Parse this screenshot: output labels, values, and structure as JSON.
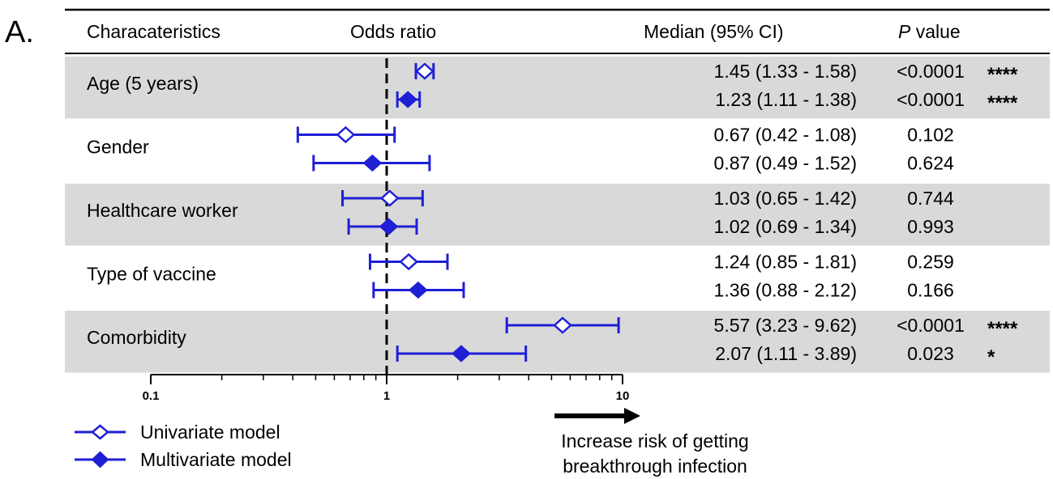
{
  "panel_label": "A.",
  "header": {
    "characteristics": "Characateristics",
    "odds_ratio": "Odds ratio",
    "median_ci": "Median (95% CI)",
    "p_italic": "P",
    "p_rest": " value"
  },
  "chart_data": {
    "type": "forest",
    "x_scale": "log",
    "xlim": [
      0.1,
      10
    ],
    "x_ticks": [
      "0.1",
      "1",
      "10"
    ],
    "reference_line": 1,
    "grid": false,
    "legend_position": "bottom-left",
    "colors": {
      "marker": "#1f1fd6",
      "shade": "#d9d9d9",
      "line": "#000000"
    },
    "series": [
      {
        "name": "Univariate model",
        "marker": "open-diamond"
      },
      {
        "name": "Multivariate model",
        "marker": "filled-diamond"
      }
    ],
    "rows": [
      {
        "label": "Age (5 years)",
        "shaded": true,
        "univariate": {
          "or": 1.45,
          "low": 1.33,
          "high": 1.58,
          "ci_text": "1.45 (1.33 - 1.58)",
          "p": "<0.0001",
          "sig": "****"
        },
        "multivariate": {
          "or": 1.23,
          "low": 1.11,
          "high": 1.38,
          "ci_text": "1.23 (1.11 - 1.38)",
          "p": "<0.0001",
          "sig": "****"
        }
      },
      {
        "label": "Gender",
        "shaded": false,
        "univariate": {
          "or": 0.67,
          "low": 0.42,
          "high": 1.08,
          "ci_text": "0.67 (0.42 - 1.08)",
          "p": "0.102",
          "sig": ""
        },
        "multivariate": {
          "or": 0.87,
          "low": 0.49,
          "high": 1.52,
          "ci_text": "0.87 (0.49 - 1.52)",
          "p": "0.624",
          "sig": ""
        }
      },
      {
        "label": "Healthcare worker",
        "shaded": true,
        "univariate": {
          "or": 1.03,
          "low": 0.65,
          "high": 1.42,
          "ci_text": "1.03 (0.65 - 1.42)",
          "p": "0.744",
          "sig": ""
        },
        "multivariate": {
          "or": 1.02,
          "low": 0.69,
          "high": 1.34,
          "ci_text": "1.02 (0.69 - 1.34)",
          "p": "0.993",
          "sig": ""
        }
      },
      {
        "label": "Type of vaccine",
        "shaded": false,
        "univariate": {
          "or": 1.24,
          "low": 0.85,
          "high": 1.81,
          "ci_text": "1.24 (0.85 - 1.81)",
          "p": "0.259",
          "sig": ""
        },
        "multivariate": {
          "or": 1.36,
          "low": 0.88,
          "high": 2.12,
          "ci_text": "1.36 (0.88 - 2.12)",
          "p": "0.166",
          "sig": ""
        }
      },
      {
        "label": "Comorbidity",
        "shaded": true,
        "univariate": {
          "or": 5.57,
          "low": 3.23,
          "high": 9.62,
          "ci_text": "5.57 (3.23 - 9.62)",
          "p": "<0.0001",
          "sig": "****"
        },
        "multivariate": {
          "or": 2.07,
          "low": 1.11,
          "high": 3.89,
          "ci_text": "2.07 (1.11 - 3.89)",
          "p": "0.023",
          "sig": "*"
        }
      }
    ]
  },
  "annotation": {
    "line1": "Increase risk of getting",
    "line2": "breakthrough infection"
  }
}
